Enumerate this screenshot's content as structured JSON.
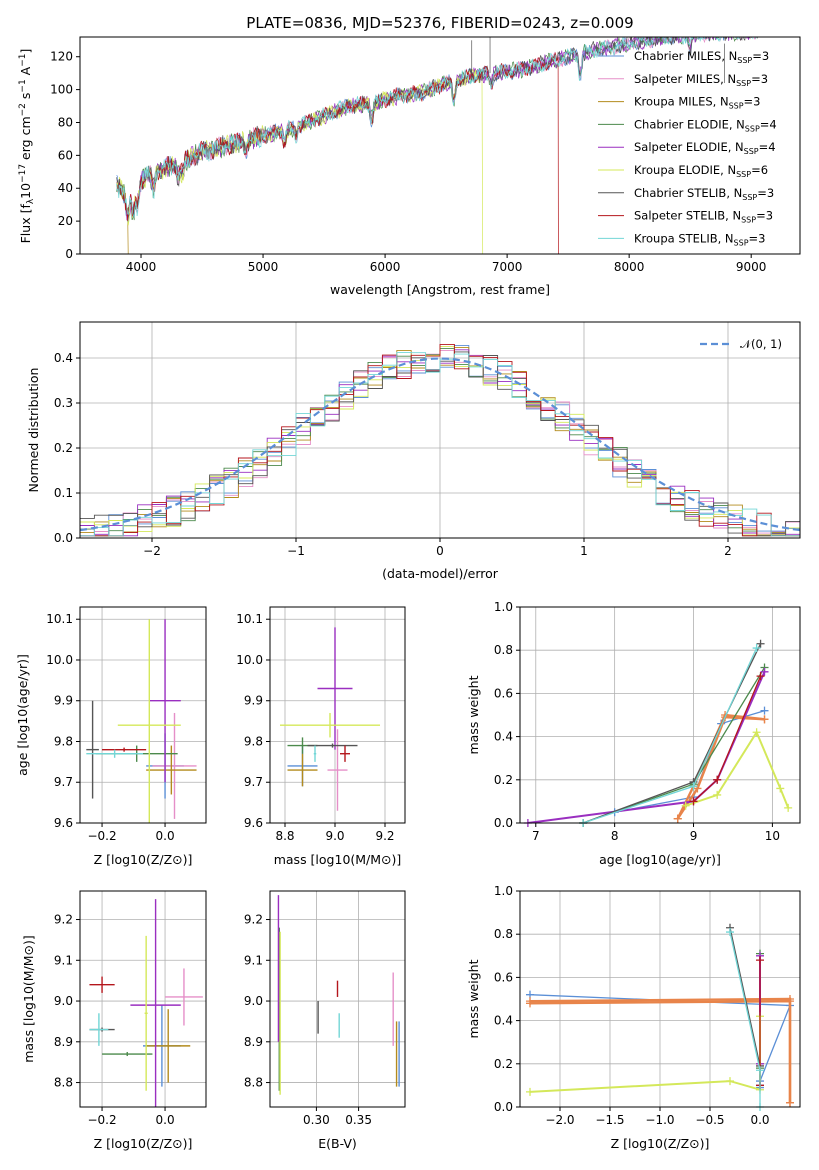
{
  "colors": {
    "Chabrier MILES": "#5b8fd6",
    "Salpeter MILES": "#e58fc8",
    "Kroupa MILES": "#b38b1d",
    "Chabrier ELODIE": "#4c8a4c",
    "Salpeter ELODIE": "#9a2fc0",
    "Kroupa ELODIE": "#d4e85a",
    "Chabrier STELIB": "#555555",
    "Salpeter STELIB": "#b4161c",
    "Kroupa STELIB": "#72d6d6",
    "normal": "#5b8fd6",
    "orange": "#e8844a"
  },
  "chart_data": [
    {
      "id": "spectrum",
      "type": "line",
      "title": "PLATE=0836, MJD=52376, FIBERID=0243, z=0.009",
      "xlabel": "wavelength [Angstrom, rest frame]",
      "ylabel": "Flux [f_λ10^-17 erg cm^-2 s^-1 A^-1]",
      "xlim": [
        3500,
        9400
      ],
      "ylim": [
        0,
        132
      ],
      "xticks": [
        "4000",
        "5000",
        "6000",
        "7000",
        "8000",
        "9000"
      ],
      "yticks": [
        "0",
        "20",
        "40",
        "60",
        "80",
        "100",
        "120"
      ],
      "legend_position": "upper-right",
      "legend": [
        {
          "name": "Chabrier MILES",
          "n": "3"
        },
        {
          "name": "Salpeter MILES",
          "n": "3"
        },
        {
          "name": "Kroupa MILES",
          "n": "3"
        },
        {
          "name": "Chabrier ELODIE",
          "n": "4"
        },
        {
          "name": "Salpeter ELODIE",
          "n": "4"
        },
        {
          "name": "Kroupa ELODIE",
          "n": "6"
        },
        {
          "name": "Chabrier STELIB",
          "n": "3"
        },
        {
          "name": "Salpeter STELIB",
          "n": "3"
        },
        {
          "name": "Kroupa STELIB",
          "n": "3"
        }
      ],
      "envelope": [
        [
          3800,
          42
        ],
        [
          3900,
          34
        ],
        [
          4000,
          45
        ],
        [
          4100,
          50
        ],
        [
          4300,
          55
        ],
        [
          4500,
          62
        ],
        [
          4700,
          66
        ],
        [
          4900,
          70
        ],
        [
          5100,
          74
        ],
        [
          5300,
          78
        ],
        [
          5500,
          84
        ],
        [
          5700,
          90
        ],
        [
          5900,
          92
        ],
        [
          6100,
          96
        ],
        [
          6300,
          98
        ],
        [
          6500,
          104
        ],
        [
          6700,
          108
        ],
        [
          6900,
          110
        ],
        [
          7100,
          112
        ],
        [
          7300,
          116
        ],
        [
          7500,
          120
        ],
        [
          7700,
          124
        ],
        [
          8000,
          128
        ],
        [
          8300,
          132
        ],
        [
          8600,
          134
        ],
        [
          9000,
          135
        ]
      ],
      "drops": [
        {
          "series": "Kroupa MILES",
          "x": 3895
        },
        {
          "series": "Kroupa ELODIE",
          "x": 6800
        },
        {
          "series": "Salpeter STELIB",
          "x": 7420
        }
      ]
    },
    {
      "id": "residuals",
      "type": "histogram",
      "xlabel": "(data-model)/error",
      "ylabel": "Normed distribution",
      "xlim": [
        -2.5,
        2.5
      ],
      "ylim": [
        0,
        0.48
      ],
      "xticks": [
        "−2",
        "−1",
        "0",
        "1",
        "2"
      ],
      "yticks": [
        "0.0",
        "0.1",
        "0.2",
        "0.3",
        "0.4"
      ],
      "legend_position": "upper-right",
      "legend": "𝒩(0, 1)",
      "bin_width": 0.1
    },
    {
      "id": "age-vs-Z",
      "type": "scatter",
      "xlabel": "Z [log10(Z/Z⊙)]",
      "ylabel": "age  [log10(age/yr)]",
      "xlim": [
        -0.27,
        0.13
      ],
      "ylim": [
        9.6,
        10.13
      ],
      "xticks": [
        "−0.2",
        "0.0"
      ],
      "yticks": [
        "9.6",
        "9.7",
        "9.8",
        "9.9",
        "10.0",
        "10.1"
      ],
      "points": [
        {
          "s": "Chabrier MILES",
          "x": 0.0,
          "y": 9.74,
          "xe": 0.06,
          "ye": 0.08
        },
        {
          "s": "Salpeter MILES",
          "x": 0.03,
          "y": 9.74,
          "xe": 0.07,
          "ye": 0.13
        },
        {
          "s": "Kroupa MILES",
          "x": 0.02,
          "y": 9.73,
          "xe": 0.08,
          "ye": 0.06
        },
        {
          "s": "Chabrier ELODIE",
          "x": -0.09,
          "y": 9.77,
          "xe": 0.13,
          "ye": 0.02
        },
        {
          "s": "Salpeter ELODIE",
          "x": 0.0,
          "y": 9.9,
          "xe": 0.05,
          "ye": 0.2
        },
        {
          "s": "Kroupa ELODIE",
          "x": -0.05,
          "y": 9.84,
          "xe": 0.1,
          "ye": 0.26
        },
        {
          "s": "Chabrier STELIB",
          "x": -0.23,
          "y": 9.78,
          "xe": 0.02,
          "ye": 0.12
        },
        {
          "s": "Salpeter STELIB",
          "x": -0.13,
          "y": 9.78,
          "xe": 0.07,
          "ye": 0.005
        },
        {
          "s": "Kroupa STELIB",
          "x": -0.16,
          "y": 9.77,
          "xe": 0.09,
          "ye": 0.01
        }
      ]
    },
    {
      "id": "age-vs-mass",
      "type": "scatter",
      "xlabel": "mass [log10(M/M⊙)]",
      "ylabel": "",
      "xlim": [
        8.74,
        9.28
      ],
      "ylim": [
        9.6,
        10.13
      ],
      "xticks": [
        "8.8",
        "9.0",
        "9.2"
      ],
      "yticks": [
        "9.6",
        "9.7",
        "9.8",
        "9.9",
        "10.0",
        "10.1"
      ],
      "points": [
        {
          "s": "Chabrier MILES",
          "x": 8.87,
          "y": 9.74,
          "xe": 0.06,
          "ye": 0.05
        },
        {
          "s": "Salpeter MILES",
          "x": 9.01,
          "y": 9.73,
          "xe": 0.04,
          "ye": 0.1
        },
        {
          "s": "Kroupa MILES",
          "x": 8.87,
          "y": 9.73,
          "xe": 0.06,
          "ye": 0.04
        },
        {
          "s": "Chabrier ELODIE",
          "x": 8.87,
          "y": 9.79,
          "xe": 0.06,
          "ye": 0.02
        },
        {
          "s": "Salpeter ELODIE",
          "x": 9.0,
          "y": 9.93,
          "xe": 0.07,
          "ye": 0.15
        },
        {
          "s": "Kroupa ELODIE",
          "x": 8.98,
          "y": 9.84,
          "xe": 0.2,
          "ye": 0.03
        },
        {
          "s": "Chabrier STELIB",
          "x": 8.99,
          "y": 9.79,
          "xe": 0.1,
          "ye": 0.005
        },
        {
          "s": "Salpeter STELIB",
          "x": 9.04,
          "y": 9.77,
          "xe": 0.02,
          "ye": 0.02
        },
        {
          "s": "Kroupa STELIB",
          "x": 8.92,
          "y": 9.77,
          "xe": 0.005,
          "ye": 0.02
        }
      ]
    },
    {
      "id": "mass-weight-vs-age",
      "type": "line",
      "xlabel": "age  [log10(age/yr)]",
      "ylabel": "mass weight",
      "xlim": [
        6.8,
        10.35
      ],
      "ylim": [
        0,
        1
      ],
      "xticks": [
        "7",
        "8",
        "9",
        "10"
      ],
      "yticks": [
        "0.0",
        "0.2",
        "0.4",
        "0.6",
        "0.8",
        "1.0"
      ],
      "series": [
        {
          "s": "Chabrier MILES",
          "x": [
            8.0,
            9.0,
            9.35,
            9.9
          ],
          "y": [
            0.05,
            0.12,
            0.46,
            0.52
          ]
        },
        {
          "s": "Salpeter MILES",
          "x": [
            8.8,
            9.05,
            9.4,
            9.9
          ],
          "y": [
            0.02,
            0.16,
            0.49,
            0.48
          ]
        },
        {
          "s": "Kroupa MILES",
          "x": [
            8.8,
            9.0,
            9.4,
            9.9
          ],
          "y": [
            0.02,
            0.17,
            0.5,
            0.48
          ]
        },
        {
          "s": "Chabrier ELODIE",
          "x": [
            7.6,
            9.0,
            9.9
          ],
          "y": [
            0.0,
            0.18,
            0.72
          ]
        },
        {
          "s": "Salpeter ELODIE",
          "x": [
            6.9,
            9.0,
            9.3,
            9.9
          ],
          "y": [
            0.0,
            0.1,
            0.2,
            0.7
          ]
        },
        {
          "s": "Kroupa ELODIE",
          "x": [
            8.9,
            9.3,
            9.8,
            10.1,
            10.2
          ],
          "y": [
            0.08,
            0.13,
            0.42,
            0.16,
            0.07
          ]
        },
        {
          "s": "Chabrier STELIB",
          "x": [
            7.6,
            9.0,
            9.85
          ],
          "y": [
            0.0,
            0.19,
            0.83
          ]
        },
        {
          "s": "Salpeter STELIB",
          "x": [
            9.0,
            9.3,
            9.85
          ],
          "y": [
            0.1,
            0.2,
            0.68
          ]
        },
        {
          "s": "Kroupa STELIB",
          "x": [
            7.6,
            9.0,
            9.8
          ],
          "y": [
            0.0,
            0.17,
            0.81
          ]
        }
      ]
    },
    {
      "id": "mass-vs-Z",
      "type": "scatter",
      "xlabel": "Z [log10(Z/Z⊙)]",
      "ylabel": "mass [log10(M/M⊙)]",
      "xlim": [
        -0.27,
        0.13
      ],
      "ylim": [
        8.74,
        9.27
      ],
      "xticks": [
        "−0.2",
        "0.0"
      ],
      "yticks": [
        "8.8",
        "8.9",
        "9.0",
        "9.1",
        "9.2"
      ],
      "points": [
        {
          "s": "Chabrier MILES",
          "x": -0.01,
          "y": 8.89,
          "xe": 0.06,
          "ye": 0.1
        },
        {
          "s": "Salpeter MILES",
          "x": 0.06,
          "y": 9.01,
          "xe": 0.06,
          "ye": 0.07
        },
        {
          "s": "Kroupa MILES",
          "x": 0.01,
          "y": 8.89,
          "xe": 0.07,
          "ye": 0.09
        },
        {
          "s": "Chabrier ELODIE",
          "x": -0.12,
          "y": 8.87,
          "xe": 0.08,
          "ye": 0.005
        },
        {
          "s": "Salpeter ELODIE",
          "x": -0.03,
          "y": 8.99,
          "xe": 0.08,
          "ye": 0.26
        },
        {
          "s": "Kroupa ELODIE",
          "x": -0.06,
          "y": 8.97,
          "xe": 0.005,
          "ye": 0.19
        },
        {
          "s": "Chabrier STELIB",
          "x": -0.2,
          "y": 8.93,
          "xe": 0.04,
          "ye": 0.005
        },
        {
          "s": "Salpeter STELIB",
          "x": -0.2,
          "y": 9.04,
          "xe": 0.04,
          "ye": 0.02
        },
        {
          "s": "Kroupa STELIB",
          "x": -0.21,
          "y": 8.93,
          "xe": 0.03,
          "ye": 0.04
        }
      ]
    },
    {
      "id": "mass-vs-EBV",
      "type": "scatter",
      "xlabel": "E(B-V)",
      "ylabel": "",
      "xlim": [
        0.245,
        0.405
      ],
      "ylim": [
        8.74,
        9.27
      ],
      "xticks": [
        "0.30",
        "0.35"
      ],
      "yticks": [
        "8.8",
        "8.9",
        "9.0",
        "9.1",
        "9.2"
      ],
      "points": [
        {
          "s": "Chabrier MILES",
          "x": 0.398,
          "y": 8.87,
          "xe": 0.0,
          "ye": 0.08
        },
        {
          "s": "Salpeter MILES",
          "x": 0.391,
          "y": 8.98,
          "xe": 0.0,
          "ye": 0.09
        },
        {
          "s": "Kroupa MILES",
          "x": 0.395,
          "y": 8.87,
          "xe": 0.0,
          "ye": 0.08
        },
        {
          "s": "Chabrier ELODIE",
          "x": 0.256,
          "y": 8.98,
          "xe": 0.0,
          "ye": 0.2
        },
        {
          "s": "Salpeter ELODIE",
          "x": 0.255,
          "y": 9.08,
          "xe": 0.0,
          "ye": 0.18
        },
        {
          "s": "Kroupa ELODIE",
          "x": 0.257,
          "y": 8.97,
          "xe": 0.0,
          "ye": 0.2
        },
        {
          "s": "Chabrier STELIB",
          "x": 0.302,
          "y": 8.96,
          "xe": 0.0,
          "ye": 0.04
        },
        {
          "s": "Salpeter STELIB",
          "x": 0.325,
          "y": 9.03,
          "xe": 0.0,
          "ye": 0.02
        },
        {
          "s": "Kroupa STELIB",
          "x": 0.327,
          "y": 8.94,
          "xe": 0.0,
          "ye": 0.03
        }
      ]
    },
    {
      "id": "mass-weight-vs-Z",
      "type": "line",
      "xlabel": "Z [log10(Z/Z⊙)]",
      "ylabel": "mass weight",
      "xlim": [
        -2.4,
        0.4
      ],
      "ylim": [
        0,
        1
      ],
      "xticks": [
        "−2.0",
        "−1.5",
        "−1.0",
        "−0.5",
        "0.0"
      ],
      "yticks": [
        "0.0",
        "0.2",
        "0.4",
        "0.6",
        "0.8",
        "1.0"
      ],
      "series": [
        {
          "s": "Chabrier MILES",
          "x": [
            -2.3,
            0.3,
            0.0,
            0.0
          ],
          "y": [
            0.52,
            0.47,
            0.12,
            0.09
          ]
        },
        {
          "s": "Salpeter MILES",
          "x": [
            -2.3,
            0.3,
            0.3
          ],
          "y": [
            0.48,
            0.49,
            0.02
          ]
        },
        {
          "s": "Kroupa MILES",
          "x": [
            -2.3,
            0.3,
            0.3
          ],
          "y": [
            0.49,
            0.5,
            0.02
          ]
        },
        {
          "s": "Chabrier ELODIE",
          "x": [
            0.0,
            0.0
          ],
          "y": [
            0.71,
            0.18
          ]
        },
        {
          "s": "Salpeter ELODIE",
          "x": [
            0.0,
            0.0,
            0.0
          ],
          "y": [
            0.7,
            0.1,
            0.2
          ]
        },
        {
          "s": "Kroupa ELODIE",
          "x": [
            -2.3,
            -0.3,
            0.0,
            0.0
          ],
          "y": [
            0.07,
            0.12,
            0.08,
            0.42
          ]
        },
        {
          "s": "Chabrier STELIB",
          "x": [
            -0.3,
            0.0,
            0.0
          ],
          "y": [
            0.83,
            0.19,
            0.1
          ]
        },
        {
          "s": "Salpeter STELIB",
          "x": [
            0.0,
            0.0
          ],
          "y": [
            0.68,
            0.1
          ]
        },
        {
          "s": "Kroupa STELIB",
          "x": [
            -0.3,
            0.0,
            0.0
          ],
          "y": [
            0.81,
            0.17,
            0.0
          ]
        }
      ]
    }
  ]
}
